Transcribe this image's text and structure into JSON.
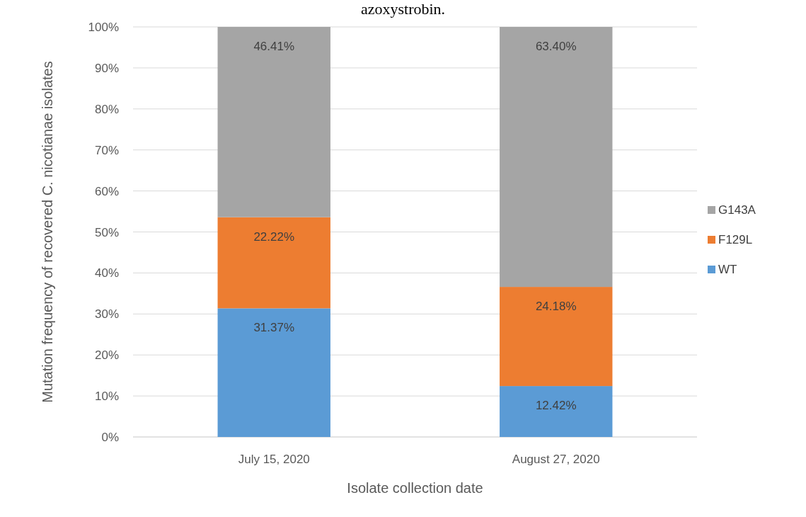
{
  "chart_data": {
    "type": "bar",
    "stacked": true,
    "title": "azoxystrobin.",
    "xlabel": "Isolate collection date",
    "ylabel": "Mutation frequency of recovered C. nicotianae isolates",
    "categories": [
      "July 15, 2020",
      "August 27, 2020"
    ],
    "series": [
      {
        "name": "WT",
        "color": "#5b9bd5",
        "values": [
          31.37,
          12.42
        ],
        "value_labels": [
          "31.37%",
          "12.42%"
        ]
      },
      {
        "name": "F129L",
        "color": "#ed7d31",
        "values": [
          22.22,
          24.18
        ],
        "value_labels": [
          "22.22%",
          "24.18%"
        ]
      },
      {
        "name": "G143A",
        "color": "#a5a5a5",
        "values": [
          46.41,
          63.4
        ],
        "value_labels": [
          "46.41%",
          "63.40%"
        ]
      }
    ],
    "ylim": [
      0,
      100
    ],
    "yticks": [
      {
        "value": 0,
        "label": "0%"
      },
      {
        "value": 10,
        "label": "10%"
      },
      {
        "value": 20,
        "label": "20%"
      },
      {
        "value": 30,
        "label": "30%"
      },
      {
        "value": 40,
        "label": "40%"
      },
      {
        "value": 50,
        "label": "50%"
      },
      {
        "value": 60,
        "label": "60%"
      },
      {
        "value": 70,
        "label": "70%"
      },
      {
        "value": 80,
        "label": "80%"
      },
      {
        "value": 90,
        "label": "90%"
      },
      {
        "value": 100,
        "label": "100%"
      }
    ],
    "grid": "y",
    "legend": "right"
  }
}
